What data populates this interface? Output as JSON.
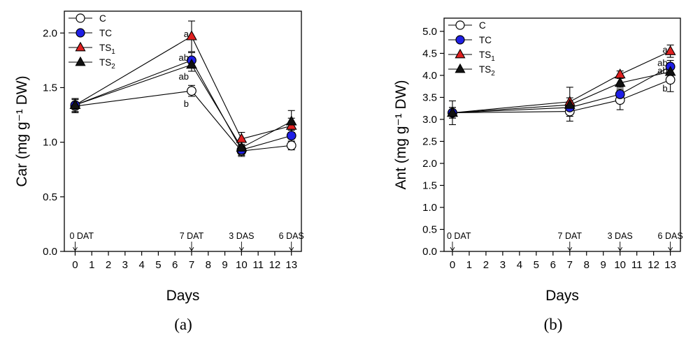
{
  "chart_data": [
    {
      "panel": "a",
      "type": "line",
      "caption": "(a)",
      "xlabel": "Days",
      "ylabel": "Car (mg g⁻¹ DW)",
      "x_ticks": [
        0,
        1,
        2,
        3,
        4,
        5,
        6,
        7,
        8,
        9,
        10,
        11,
        12,
        13
      ],
      "x_tick_labels": [
        "0",
        "1",
        "2",
        "3",
        "4",
        "5",
        "6",
        "7",
        "8",
        "9",
        "10",
        "11",
        "12",
        "13"
      ],
      "xlim": [
        -0.65,
        13.6
      ],
      "ylim": [
        0.0,
        2.2
      ],
      "y_ticks": [
        0.0,
        0.5,
        1.0,
        1.5,
        2.0
      ],
      "y_tick_labels": [
        "0.0",
        "0.5",
        "1.0",
        "1.5",
        "2.0"
      ],
      "events": [
        {
          "x": 0,
          "label": "0 DAT"
        },
        {
          "x": 7,
          "label": "7 DAT"
        },
        {
          "x": 10,
          "label": "3 DAS"
        },
        {
          "x": 13,
          "label": "6 DAS"
        }
      ],
      "series": [
        {
          "name": "C",
          "sub": "",
          "marker": "circle",
          "fill": "#ffffff",
          "x": [
            0,
            7,
            10,
            13
          ],
          "y": [
            1.33,
            1.47,
            0.92,
            0.97
          ],
          "err": [
            0.06,
            0.05,
            0.05,
            0.04
          ]
        },
        {
          "name": "TC",
          "sub": "",
          "marker": "circle",
          "fill": "#1f1fe6",
          "x": [
            0,
            7,
            10,
            13
          ],
          "y": [
            1.34,
            1.75,
            0.93,
            1.06
          ],
          "err": [
            0.06,
            0.07,
            0.05,
            0.05
          ]
        },
        {
          "name": "TS",
          "sub": "1",
          "marker": "triangle",
          "fill": "#e02020",
          "x": [
            0,
            7,
            10,
            13
          ],
          "y": [
            1.34,
            1.97,
            1.03,
            1.15
          ],
          "err": [
            0.06,
            0.14,
            0.06,
            0.07
          ]
        },
        {
          "name": "TS",
          "sub": "2",
          "marker": "triangle",
          "fill": "#111111",
          "x": [
            0,
            7,
            10,
            13
          ],
          "y": [
            1.34,
            1.71,
            0.95,
            1.19
          ],
          "err": [
            0.06,
            0.06,
            0.05,
            0.1
          ]
        }
      ],
      "letters": [
        {
          "x": 7,
          "y": 1.99,
          "text": "a"
        },
        {
          "x": 7,
          "y": 1.77,
          "text": "ab"
        },
        {
          "x": 7,
          "y": 1.6,
          "text": "ab"
        },
        {
          "x": 7,
          "y": 1.35,
          "text": "b"
        }
      ]
    },
    {
      "panel": "b",
      "type": "line",
      "caption": "(b)",
      "xlabel": "Days",
      "ylabel": "Ant (mg g⁻¹ DW)",
      "x_ticks": [
        0,
        1,
        2,
        3,
        4,
        5,
        6,
        7,
        8,
        9,
        10,
        11,
        12,
        13
      ],
      "x_tick_labels": [
        "0",
        "1",
        "2",
        "3",
        "4",
        "5",
        "6",
        "7",
        "8",
        "9",
        "10",
        "11",
        "12",
        "13"
      ],
      "xlim": [
        -0.5,
        13.6
      ],
      "ylim": [
        0.0,
        5.3
      ],
      "y_ticks": [
        0.0,
        0.5,
        1.0,
        1.5,
        2.0,
        2.5,
        3.0,
        3.5,
        4.0,
        4.5,
        5.0
      ],
      "y_tick_labels": [
        "0.0",
        "0.5",
        "1.0",
        "1.5",
        "2.0",
        "2.5",
        "3.0",
        "3.5",
        "4.0",
        "4.5",
        "5.0"
      ],
      "events": [
        {
          "x": 0,
          "label": "0 DAT"
        },
        {
          "x": 7,
          "label": "7 DAT"
        },
        {
          "x": 10,
          "label": "3 DAS"
        },
        {
          "x": 13,
          "label": "6 DAS"
        }
      ],
      "series": [
        {
          "name": "C",
          "sub": "",
          "marker": "circle",
          "fill": "#ffffff",
          "x": [
            0,
            7,
            10,
            13
          ],
          "y": [
            3.15,
            3.18,
            3.44,
            3.9
          ],
          "err": [
            0.27,
            0.22,
            0.22,
            0.27
          ]
        },
        {
          "name": "TC",
          "sub": "",
          "marker": "circle",
          "fill": "#1f1fe6",
          "x": [
            0,
            7,
            10,
            13
          ],
          "y": [
            3.15,
            3.27,
            3.57,
            4.2
          ],
          "err": [
            0.12,
            0.12,
            0.12,
            0.14
          ]
        },
        {
          "name": "TS",
          "sub": "1",
          "marker": "triangle",
          "fill": "#e02020",
          "x": [
            0,
            7,
            10,
            13
          ],
          "y": [
            3.15,
            3.4,
            4.02,
            4.55
          ],
          "err": [
            0.12,
            0.33,
            0.08,
            0.14
          ]
        },
        {
          "name": "TS",
          "sub": "2",
          "marker": "triangle",
          "fill": "#111111",
          "x": [
            0,
            7,
            10,
            13
          ],
          "y": [
            3.15,
            3.33,
            3.83,
            4.08
          ],
          "err": [
            0.12,
            0.16,
            0.1,
            0.12
          ]
        }
      ],
      "letters": [
        {
          "x": 13,
          "y": 4.58,
          "text": "a"
        },
        {
          "x": 13,
          "y": 4.28,
          "text": "ab"
        },
        {
          "x": 13,
          "y": 4.1,
          "text": "ab"
        },
        {
          "x": 13,
          "y": 3.7,
          "text": "b"
        }
      ]
    }
  ]
}
